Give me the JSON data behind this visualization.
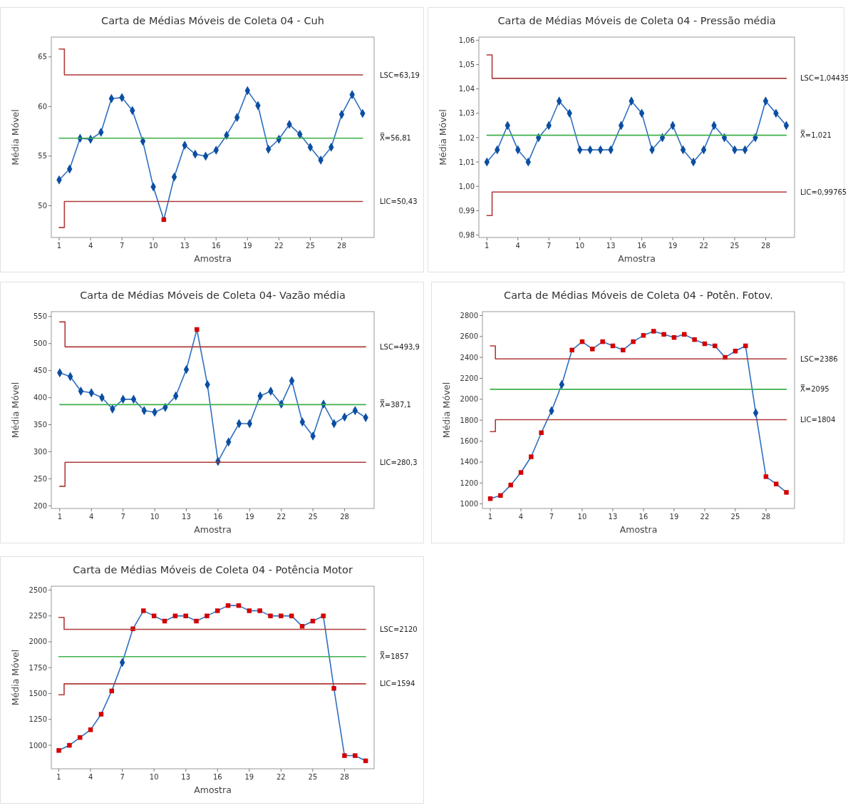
{
  "chart_data": [
    {
      "type": "line",
      "title": "Carta de Médias Móveis de Coleta 04 - Cuh",
      "xlabel": "Amostra",
      "ylabel": "Média Móvel",
      "x": [
        1,
        2,
        3,
        4,
        5,
        6,
        7,
        8,
        9,
        10,
        11,
        12,
        13,
        14,
        15,
        16,
        17,
        18,
        19,
        20,
        21,
        22,
        23,
        24,
        25,
        26,
        27,
        28,
        29,
        30
      ],
      "xlim": [
        0.25,
        31.1
      ],
      "ylim": [
        46.8,
        67
      ],
      "xticks": [
        1,
        4,
        7,
        10,
        13,
        16,
        19,
        22,
        25,
        28
      ],
      "yticks": [
        50,
        55,
        60,
        65
      ],
      "series": [
        {
          "type": "line",
          "color": "#2f6fc0",
          "values": [
            52.6,
            53.7,
            56.8,
            56.7,
            57.4,
            60.8,
            60.9,
            59.6,
            56.5,
            51.9,
            48.6,
            52.9,
            56.1,
            55.2,
            55.0,
            55.6,
            57.1,
            58.9,
            61.6,
            60.1,
            55.7,
            56.7,
            58.2,
            57.2,
            55.9,
            54.6,
            55.9,
            59.2,
            61.2,
            59.3
          ]
        },
        {
          "type": "scatter",
          "marker": "diamond",
          "color": "#0b4ea2",
          "x": [
            1,
            2,
            3,
            4,
            5,
            6,
            7,
            8,
            9,
            10,
            12,
            13,
            14,
            15,
            16,
            17,
            18,
            19,
            20,
            21,
            22,
            23,
            24,
            25,
            26,
            27,
            28,
            29,
            30
          ],
          "values": [
            52.6,
            53.7,
            56.8,
            56.7,
            57.4,
            60.8,
            60.9,
            59.6,
            56.5,
            51.9,
            52.9,
            56.1,
            55.2,
            55.0,
            55.6,
            57.1,
            58.9,
            61.6,
            60.1,
            55.7,
            56.7,
            58.2,
            57.2,
            55.9,
            54.6,
            55.9,
            59.2,
            61.2,
            59.3
          ]
        },
        {
          "type": "scatter",
          "marker": "square",
          "color": "#d40000",
          "x": [
            11
          ],
          "values": [
            48.6
          ]
        },
        {
          "type": "step",
          "name": "LSC=63,19",
          "color": "#b03a3a",
          "x": [
            1,
            2,
            30
          ],
          "values": [
            65.8,
            63.19,
            63.19
          ]
        },
        {
          "type": "line",
          "name": "X̿=56,81",
          "color": "#3cb04a",
          "x": [
            1,
            30
          ],
          "values": [
            56.81,
            56.81
          ]
        },
        {
          "type": "step",
          "name": "LIC=50,43",
          "color": "#b03a3a",
          "x": [
            1,
            2,
            30
          ],
          "values": [
            47.8,
            50.43,
            50.43
          ]
        }
      ]
    },
    {
      "type": "line",
      "title": "Carta de Médias Móveis de Coleta 04 - Pressão média",
      "xlabel": "Amostra",
      "ylabel": "Média Móvel",
      "x": [
        1,
        2,
        3,
        4,
        5,
        6,
        7,
        8,
        9,
        10,
        11,
        12,
        13,
        14,
        15,
        16,
        17,
        18,
        19,
        20,
        21,
        22,
        23,
        24,
        25,
        26,
        27,
        28,
        29,
        30
      ],
      "xlim": [
        0.22,
        30.8
      ],
      "ylim": [
        0.979,
        1.0613
      ],
      "xticks": [
        1,
        4,
        7,
        10,
        13,
        16,
        19,
        22,
        25,
        28
      ],
      "yticks": [
        {
          "value": 0.98,
          "label": "0,98"
        },
        {
          "value": 0.99,
          "label": "0,99"
        },
        {
          "value": 1.0,
          "label": "1,00"
        },
        {
          "value": 1.01,
          "label": "1,01"
        },
        {
          "value": 1.02,
          "label": "1,02"
        },
        {
          "value": 1.03,
          "label": "1,03"
        },
        {
          "value": 1.04,
          "label": "1,04"
        },
        {
          "value": 1.05,
          "label": "1,05"
        },
        {
          "value": 1.06,
          "label": "1,06"
        }
      ],
      "series": [
        {
          "type": "line",
          "color": "#2f6fc0",
          "values": [
            1.01,
            1.015,
            1.025,
            1.015,
            1.01,
            1.02,
            1.025,
            1.035,
            1.03,
            1.015,
            1.015,
            1.015,
            1.015,
            1.025,
            1.035,
            1.03,
            1.015,
            1.02,
            1.025,
            1.015,
            1.01,
            1.015,
            1.025,
            1.02,
            1.015,
            1.015,
            1.02,
            1.035,
            1.03,
            1.025
          ]
        },
        {
          "type": "scatter",
          "marker": "diamond",
          "color": "#0b4ea2",
          "values": [
            1.01,
            1.015,
            1.025,
            1.015,
            1.01,
            1.02,
            1.025,
            1.035,
            1.03,
            1.015,
            1.015,
            1.015,
            1.015,
            1.025,
            1.035,
            1.03,
            1.015,
            1.02,
            1.025,
            1.015,
            1.01,
            1.015,
            1.025,
            1.02,
            1.015,
            1.015,
            1.02,
            1.035,
            1.03,
            1.025
          ]
        },
        {
          "type": "step",
          "name": "LSC=1,04435",
          "color": "#b03a3a",
          "x": [
            1,
            2,
            30
          ],
          "values": [
            1.054,
            1.04435,
            1.04435
          ]
        },
        {
          "type": "line",
          "name": "X̿=1,021",
          "color": "#3cb04a",
          "x": [
            1,
            30
          ],
          "values": [
            1.021,
            1.021
          ]
        },
        {
          "type": "step",
          "name": "LIC=0,99765",
          "color": "#b03a3a",
          "x": [
            1,
            2,
            30
          ],
          "values": [
            0.988,
            0.99765,
            0.99765
          ]
        }
      ]
    },
    {
      "type": "line",
      "title": "Carta de Médias Móveis de Coleta 04- Vazão média",
      "xlabel": "Amostra",
      "ylabel": "Média Móvel",
      "x": [
        1,
        2,
        3,
        4,
        5,
        6,
        7,
        8,
        9,
        10,
        11,
        12,
        13,
        14,
        15,
        16,
        17,
        18,
        19,
        20,
        21,
        22,
        23,
        24,
        25,
        26,
        27,
        28,
        29,
        30
      ],
      "xlim": [
        0.2,
        30.8
      ],
      "ylim": [
        195,
        559
      ],
      "xticks": [
        1,
        4,
        7,
        10,
        13,
        16,
        19,
        22,
        25,
        28
      ],
      "yticks": [
        200,
        250,
        300,
        350,
        400,
        450,
        500,
        550
      ],
      "series": [
        {
          "type": "line",
          "color": "#2f6fc0",
          "values": [
            446,
            439,
            412,
            409,
            400,
            379,
            397,
            397,
            376,
            373,
            382,
            403,
            452,
            526,
            424,
            282,
            318,
            352,
            352,
            403,
            412,
            388,
            431,
            355,
            329,
            388,
            352,
            364,
            376,
            363
          ]
        },
        {
          "type": "scatter",
          "marker": "diamond",
          "color": "#0b4ea2",
          "x": [
            1,
            2,
            3,
            4,
            5,
            6,
            7,
            8,
            9,
            10,
            11,
            12,
            13,
            15,
            16,
            17,
            18,
            19,
            20,
            21,
            22,
            23,
            24,
            25,
            26,
            27,
            28,
            29,
            30
          ],
          "values": [
            446,
            439,
            412,
            409,
            400,
            379,
            397,
            397,
            376,
            373,
            382,
            403,
            452,
            424,
            282,
            318,
            352,
            352,
            403,
            412,
            388,
            431,
            355,
            329,
            388,
            352,
            364,
            376,
            363
          ]
        },
        {
          "type": "scatter",
          "marker": "square",
          "color": "#d40000",
          "x": [
            14
          ],
          "values": [
            526
          ]
        },
        {
          "type": "step",
          "name": "LSC=493,9",
          "color": "#b03a3a",
          "x": [
            1,
            2,
            30
          ],
          "values": [
            540,
            493.9,
            493.9
          ]
        },
        {
          "type": "line",
          "name": "X̿=387,1",
          "color": "#3cb04a",
          "x": [
            1,
            30
          ],
          "values": [
            387.1,
            387.1
          ]
        },
        {
          "type": "step",
          "name": "LIC=280,3",
          "color": "#b03a3a",
          "x": [
            1,
            2,
            30
          ],
          "values": [
            236,
            280.3,
            280.3
          ]
        }
      ]
    },
    {
      "type": "line",
      "title": "Carta de Médias Móveis de Coleta 04 - Potên. Fotov.",
      "xlabel": "Amostra",
      "ylabel": "Média Móvel",
      "x": [
        1,
        2,
        3,
        4,
        5,
        6,
        7,
        8,
        9,
        10,
        11,
        12,
        13,
        14,
        15,
        16,
        17,
        18,
        19,
        20,
        21,
        22,
        23,
        24,
        25,
        26,
        27,
        28,
        29,
        30
      ],
      "xlim": [
        0.23,
        30.8
      ],
      "ylim": [
        956,
        2837
      ],
      "xticks": [
        1,
        4,
        7,
        10,
        13,
        16,
        19,
        22,
        25,
        28
      ],
      "yticks": [
        1000,
        1200,
        1400,
        1600,
        1800,
        2000,
        2200,
        2400,
        2600,
        2800
      ],
      "series": [
        {
          "type": "line",
          "color": "#2f6fc0",
          "values": [
            1050,
            1080,
            1180,
            1300,
            1450,
            1680,
            1890,
            2140,
            2470,
            2550,
            2480,
            2550,
            2510,
            2470,
            2550,
            2610,
            2650,
            2620,
            2590,
            2620,
            2570,
            2530,
            2510,
            2400,
            2460,
            2510,
            1870,
            1260,
            1190,
            1110
          ]
        },
        {
          "type": "scatter",
          "marker": "diamond",
          "color": "#0b4ea2",
          "x": [
            7,
            8,
            27
          ],
          "values": [
            1890,
            2140,
            1870
          ]
        },
        {
          "type": "scatter",
          "marker": "square",
          "color": "#d40000",
          "x": [
            1,
            2,
            3,
            4,
            5,
            6,
            9,
            10,
            11,
            12,
            13,
            14,
            15,
            16,
            17,
            18,
            19,
            20,
            21,
            22,
            23,
            24,
            25,
            26,
            28,
            29,
            30
          ],
          "values": [
            1050,
            1080,
            1180,
            1300,
            1450,
            1680,
            2470,
            2550,
            2480,
            2550,
            2510,
            2470,
            2550,
            2610,
            2650,
            2620,
            2590,
            2620,
            2570,
            2530,
            2510,
            2400,
            2460,
            2510,
            1260,
            1190,
            1110
          ]
        },
        {
          "type": "step",
          "name": "LSC=2386",
          "color": "#b03a3a",
          "x": [
            1,
            2,
            30
          ],
          "values": [
            2510,
            2386,
            2386
          ]
        },
        {
          "type": "line",
          "name": "X̿=2095",
          "color": "#3cb04a",
          "x": [
            1,
            30
          ],
          "values": [
            2095,
            2095
          ]
        },
        {
          "type": "step",
          "name": "LIC=1804",
          "color": "#b03a3a",
          "x": [
            1,
            2,
            30
          ],
          "values": [
            1690,
            1804,
            1804
          ]
        }
      ]
    },
    {
      "type": "line",
      "title": "Carta de Médias Móveis de Coleta 04 - Potência Motor",
      "xlabel": "Amostra",
      "ylabel": "Média Móvel",
      "x": [
        1,
        2,
        3,
        4,
        5,
        6,
        7,
        8,
        9,
        10,
        11,
        12,
        13,
        14,
        15,
        16,
        17,
        18,
        19,
        20,
        21,
        22,
        23,
        24,
        25,
        26,
        27,
        28,
        29,
        30
      ],
      "xlim": [
        0.29,
        30.8
      ],
      "ylim": [
        773,
        2537
      ],
      "xticks": [
        1,
        4,
        7,
        10,
        13,
        16,
        19,
        22,
        25,
        28
      ],
      "yticks": [
        1000,
        1250,
        1500,
        1750,
        2000,
        2250,
        2500
      ],
      "series": [
        {
          "type": "line",
          "color": "#2f6fc0",
          "values": [
            950,
            1000,
            1075,
            1150,
            1300,
            1525,
            1800,
            2125,
            2300,
            2250,
            2200,
            2250,
            2250,
            2200,
            2250,
            2300,
            2350,
            2350,
            2300,
            2300,
            2250,
            2250,
            2250,
            2150,
            2200,
            2250,
            1550,
            900,
            900,
            850
          ]
        },
        {
          "type": "scatter",
          "marker": "diamond",
          "color": "#0b4ea2",
          "x": [
            7
          ],
          "values": [
            1800
          ]
        },
        {
          "type": "scatter",
          "marker": "square",
          "color": "#d40000",
          "x": [
            1,
            2,
            3,
            4,
            5,
            6,
            8,
            9,
            10,
            11,
            12,
            13,
            14,
            15,
            16,
            17,
            18,
            19,
            20,
            21,
            22,
            23,
            24,
            25,
            26,
            27,
            28,
            29,
            30
          ],
          "values": [
            950,
            1000,
            1075,
            1150,
            1300,
            1525,
            2125,
            2300,
            2250,
            2200,
            2250,
            2250,
            2200,
            2250,
            2300,
            2350,
            2350,
            2300,
            2300,
            2250,
            2250,
            2250,
            2150,
            2200,
            2250,
            1550,
            900,
            900,
            850
          ]
        },
        {
          "type": "step",
          "name": "LSC=2120",
          "color": "#b03a3a",
          "x": [
            1,
            2,
            30
          ],
          "values": [
            2236,
            2120,
            2120
          ]
        },
        {
          "type": "line",
          "name": "X̿=1857",
          "color": "#3cb04a",
          "x": [
            1,
            30
          ],
          "values": [
            1857,
            1857
          ]
        },
        {
          "type": "step",
          "name": "LIC=1594",
          "color": "#b03a3a",
          "x": [
            1,
            2,
            30
          ],
          "values": [
            1488,
            1594,
            1594
          ]
        }
      ]
    }
  ]
}
